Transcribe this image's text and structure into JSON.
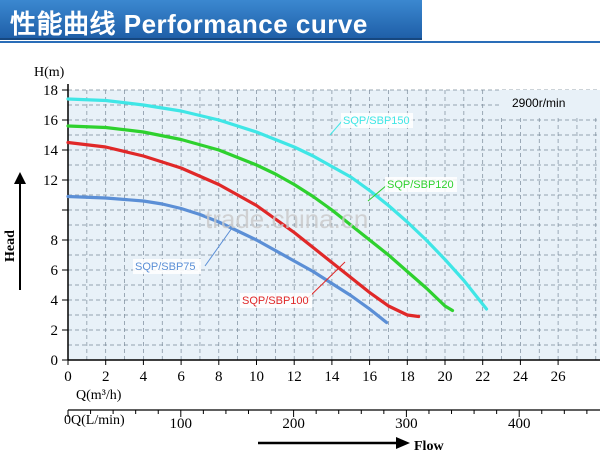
{
  "header": {
    "title": "性能曲线 Performance curve",
    "accent_color": "#2a6db8"
  },
  "chart_data": {
    "type": "line",
    "speed_label": "2900r/min",
    "ylabel": "H(m)",
    "head_label": "Head",
    "xlabel": "Q(m³/h)",
    "x2label": "Q(L/min)",
    "flow_label": "Flow",
    "xlim": [
      0,
      28
    ],
    "ylim": [
      0,
      18
    ],
    "x_ticks": [
      0,
      2,
      4,
      6,
      8,
      10,
      12,
      14,
      16,
      18,
      20,
      22,
      24,
      26
    ],
    "y_ticks": [
      0,
      2,
      4,
      6,
      8,
      10,
      12,
      14,
      16,
      18
    ],
    "y_tick_labels": [
      "0",
      "2",
      "4",
      "6",
      "8",
      "",
      "12",
      "14",
      "16",
      "18"
    ],
    "x2_ticks": [
      0,
      100,
      200,
      300,
      400
    ],
    "watermark": "trade.china.cn",
    "series": [
      {
        "name": "SQP/SBP75",
        "color": "#5b8fd6",
        "x": [
          0,
          2,
          4,
          5,
          6,
          7,
          8,
          9,
          10,
          11,
          12,
          13,
          14,
          15,
          16,
          16.9
        ],
        "y": [
          10.9,
          10.8,
          10.6,
          10.4,
          10.1,
          9.7,
          9.2,
          8.6,
          8.0,
          7.3,
          6.6,
          5.9,
          5.1,
          4.3,
          3.4,
          2.5
        ]
      },
      {
        "name": "SQP/SBP100",
        "color": "#e02828",
        "x": [
          0,
          2,
          4,
          6,
          8,
          9,
          10,
          11,
          12,
          13,
          14,
          15,
          16,
          17,
          18,
          18.6
        ],
        "y": [
          14.5,
          14.2,
          13.6,
          12.8,
          11.7,
          11.0,
          10.3,
          9.4,
          8.5,
          7.5,
          6.5,
          5.5,
          4.5,
          3.6,
          3.0,
          2.9
        ]
      },
      {
        "name": "SQP/SBP120",
        "color": "#2ed12e",
        "x": [
          0,
          2,
          4,
          6,
          8,
          10,
          11,
          12,
          13,
          14,
          15,
          16,
          17,
          18,
          19,
          20,
          20.4
        ],
        "y": [
          15.6,
          15.5,
          15.2,
          14.7,
          14.0,
          13.0,
          12.4,
          11.7,
          10.9,
          10.0,
          9.0,
          8.0,
          7.0,
          5.9,
          4.8,
          3.6,
          3.3
        ]
      },
      {
        "name": "SQP/SBP150",
        "color": "#3fe6e6",
        "x": [
          0,
          2,
          4,
          6,
          8,
          10,
          12,
          13,
          14,
          15,
          16,
          17,
          18,
          19,
          20,
          21,
          22.2
        ],
        "y": [
          17.4,
          17.3,
          17.0,
          16.6,
          16.0,
          15.2,
          14.2,
          13.6,
          12.9,
          12.2,
          11.3,
          10.3,
          9.2,
          8.0,
          6.7,
          5.3,
          3.4
        ]
      }
    ],
    "series_label_colors": {
      "SQP/SBP75": "#5b8fd6",
      "SQP/SBP100": "#e02828",
      "SQP/SBP120": "#2ed12e",
      "SQP/SBP150": "#3fe6e6"
    }
  }
}
